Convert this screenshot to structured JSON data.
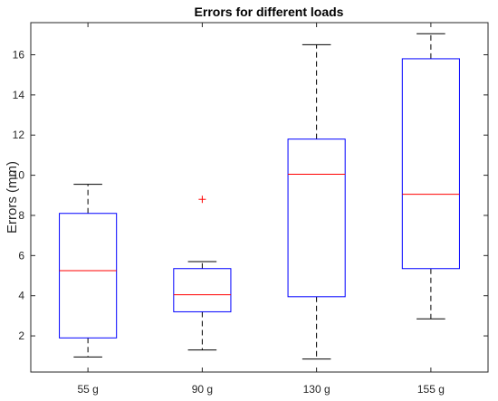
{
  "chart_data": {
    "type": "box",
    "title": "Errors for different loads",
    "xlabel": "",
    "ylabel": "Errors (mm)",
    "ylim": [
      0.2,
      17.6
    ],
    "yticks": [
      2,
      4,
      6,
      8,
      10,
      12,
      14,
      16
    ],
    "categories": [
      "55 g",
      "90 g",
      "130 g",
      "155 g"
    ],
    "boxes": [
      {
        "whisker_low": 0.95,
        "q1": 1.9,
        "median": 5.25,
        "q3": 8.1,
        "whisker_high": 9.55,
        "outliers": []
      },
      {
        "whisker_low": 1.3,
        "q1": 3.2,
        "median": 4.05,
        "q3": 5.35,
        "whisker_high": 5.7,
        "outliers": [
          8.8
        ]
      },
      {
        "whisker_low": 0.85,
        "q1": 3.95,
        "median": 10.05,
        "q3": 11.8,
        "whisker_high": 16.5,
        "outliers": []
      },
      {
        "whisker_low": 2.85,
        "q1": 5.35,
        "median": 9.05,
        "q3": 15.8,
        "whisker_high": 17.05,
        "outliers": []
      }
    ],
    "colors": {
      "box": "#0000ff",
      "median": "#ff0000",
      "whisker": "#000000",
      "outlier": "#ff0000"
    },
    "grid": false,
    "legend": "none"
  }
}
